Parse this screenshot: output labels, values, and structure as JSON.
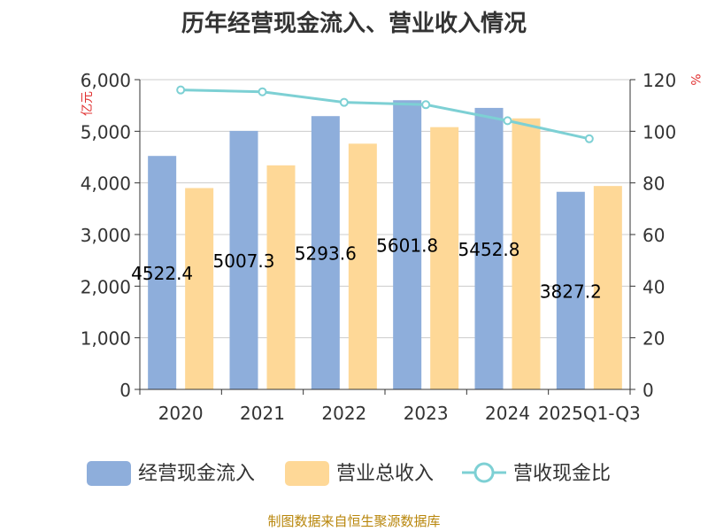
{
  "chart_data": {
    "type": "bar",
    "title": "历年经营现金流入、营业收入情况",
    "categories": [
      "2020",
      "2021",
      "2022",
      "2023",
      "2024",
      "2025Q1-Q3"
    ],
    "series": [
      {
        "name": "经营现金流入",
        "kind": "bar",
        "axis": "left",
        "color": "#8eaedb",
        "values": [
          4522.4,
          5007.3,
          5293.6,
          5601.8,
          5452.8,
          3827.2
        ],
        "labels": [
          "4522.4",
          "5007.3",
          "5293.6",
          "5601.8",
          "5452.8",
          "3827.2"
        ]
      },
      {
        "name": "营业总收入",
        "kind": "bar",
        "axis": "left",
        "color": "#fed897",
        "values": [
          3900,
          4340,
          4760,
          5080,
          5250,
          3940
        ]
      },
      {
        "name": "营收现金比",
        "kind": "line",
        "axis": "right",
        "color": "#7dd0d4",
        "values": [
          116,
          115.3,
          111.2,
          110.3,
          104.1,
          97.1
        ]
      }
    ],
    "left_axis": {
      "label": "亿元",
      "min": 0,
      "max": 6000,
      "ticks": [
        0,
        1000,
        2000,
        3000,
        4000,
        5000,
        6000
      ],
      "tick_labels": [
        "0",
        "1,000",
        "2,000",
        "3,000",
        "4,000",
        "5,000",
        "6,000"
      ]
    },
    "right_axis": {
      "label": "%",
      "min": 0,
      "max": 120,
      "ticks": [
        0,
        20,
        40,
        60,
        80,
        100,
        120
      ],
      "tick_labels": [
        "0",
        "20",
        "40",
        "60",
        "80",
        "100",
        "120"
      ]
    },
    "legend": [
      "经营现金流入",
      "营业总收入",
      "营收现金比"
    ],
    "legend_position": "bottom",
    "grid": true
  },
  "source": "制图数据来自恒生聚源数据库"
}
